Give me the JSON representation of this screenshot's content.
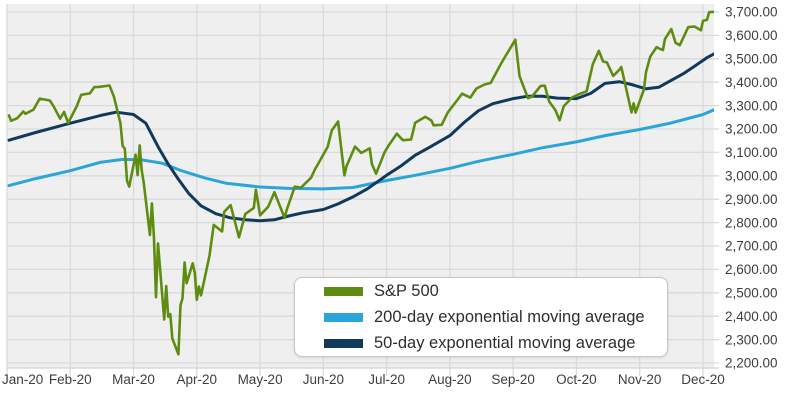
{
  "chart_data": {
    "type": "line",
    "title": "",
    "grid": true,
    "legend_position": "boxed-bottom-center",
    "x_axis": {
      "labels": [
        "Jan-20",
        "Feb-20",
        "Mar-20",
        "Apr-20",
        "May-20",
        "Jun-20",
        "Jul-20",
        "Aug-20",
        "Sep-20",
        "Oct-20",
        "Nov-20",
        "Dec-20"
      ]
    },
    "y_axis": {
      "min": 2200,
      "max": 3700,
      "step": 100,
      "labels": [
        "2,200.00",
        "2,300.00",
        "2,400.00",
        "2,500.00",
        "2,600.00",
        "2,700.00",
        "2,800.00",
        "2,900.00",
        "3,000.00",
        "3,100.00",
        "3,200.00",
        "3,300.00",
        "3,400.00",
        "3,500.00",
        "3,600.00",
        "3,700.00"
      ]
    },
    "point_format": "[month, day, close] for year 2020",
    "series": [
      {
        "name": "S&P 500",
        "color": "#5e8c11",
        "width": 2.6,
        "points": [
          [
            1,
            2,
            3258
          ],
          [
            1,
            3,
            3235
          ],
          [
            1,
            6,
            3246
          ],
          [
            1,
            9,
            3275
          ],
          [
            1,
            10,
            3265
          ],
          [
            1,
            14,
            3283
          ],
          [
            1,
            17,
            3330
          ],
          [
            1,
            22,
            3322
          ],
          [
            1,
            24,
            3295
          ],
          [
            1,
            27,
            3244
          ],
          [
            1,
            29,
            3273
          ],
          [
            1,
            31,
            3226
          ],
          [
            2,
            4,
            3298
          ],
          [
            2,
            6,
            3346
          ],
          [
            2,
            10,
            3352
          ],
          [
            2,
            12,
            3379
          ],
          [
            2,
            14,
            3380
          ],
          [
            2,
            19,
            3386
          ],
          [
            2,
            21,
            3338
          ],
          [
            2,
            24,
            3226
          ],
          [
            2,
            25,
            3128
          ],
          [
            2,
            26,
            3116
          ],
          [
            2,
            27,
            2979
          ],
          [
            2,
            28,
            2954
          ],
          [
            3,
            2,
            3090
          ],
          [
            3,
            3,
            3003
          ],
          [
            3,
            4,
            3130
          ],
          [
            3,
            5,
            3024
          ],
          [
            3,
            6,
            2972
          ],
          [
            3,
            9,
            2747
          ],
          [
            3,
            10,
            2882
          ],
          [
            3,
            11,
            2741
          ],
          [
            3,
            12,
            2481
          ],
          [
            3,
            13,
            2711
          ],
          [
            3,
            16,
            2386
          ],
          [
            3,
            17,
            2529
          ],
          [
            3,
            18,
            2398
          ],
          [
            3,
            19,
            2409
          ],
          [
            3,
            20,
            2305
          ],
          [
            3,
            23,
            2237
          ],
          [
            3,
            24,
            2447
          ],
          [
            3,
            25,
            2476
          ],
          [
            3,
            26,
            2630
          ],
          [
            3,
            27,
            2541
          ],
          [
            3,
            30,
            2626
          ],
          [
            3,
            31,
            2585
          ],
          [
            4,
            1,
            2470
          ],
          [
            4,
            2,
            2527
          ],
          [
            4,
            3,
            2489
          ],
          [
            4,
            7,
            2659
          ],
          [
            4,
            9,
            2790
          ],
          [
            4,
            13,
            2762
          ],
          [
            4,
            14,
            2846
          ],
          [
            4,
            17,
            2875
          ],
          [
            4,
            21,
            2737
          ],
          [
            4,
            24,
            2837
          ],
          [
            4,
            28,
            2863
          ],
          [
            4,
            29,
            2940
          ],
          [
            5,
            1,
            2831
          ],
          [
            5,
            5,
            2868
          ],
          [
            5,
            8,
            2930
          ],
          [
            5,
            13,
            2820
          ],
          [
            5,
            14,
            2853
          ],
          [
            5,
            18,
            2954
          ],
          [
            5,
            21,
            2949
          ],
          [
            5,
            26,
            2992
          ],
          [
            5,
            28,
            3030
          ],
          [
            5,
            29,
            3044
          ],
          [
            6,
            3,
            3123
          ],
          [
            6,
            5,
            3194
          ],
          [
            6,
            8,
            3232
          ],
          [
            6,
            11,
            3002
          ],
          [
            6,
            12,
            3041
          ],
          [
            6,
            16,
            3125
          ],
          [
            6,
            19,
            3098
          ],
          [
            6,
            23,
            3117
          ],
          [
            6,
            24,
            3050
          ],
          [
            6,
            26,
            3009
          ],
          [
            6,
            30,
            3100
          ],
          [
            7,
            2,
            3130
          ],
          [
            7,
            6,
            3180
          ],
          [
            7,
            9,
            3152
          ],
          [
            7,
            13,
            3155
          ],
          [
            7,
            15,
            3227
          ],
          [
            7,
            20,
            3252
          ],
          [
            7,
            23,
            3236
          ],
          [
            7,
            24,
            3216
          ],
          [
            7,
            28,
            3218
          ],
          [
            7,
            31,
            3271
          ],
          [
            8,
            5,
            3328
          ],
          [
            8,
            7,
            3351
          ],
          [
            8,
            11,
            3334
          ],
          [
            8,
            14,
            3373
          ],
          [
            8,
            18,
            3390
          ],
          [
            8,
            21,
            3397
          ],
          [
            8,
            26,
            3478
          ],
          [
            8,
            28,
            3508
          ],
          [
            9,
            2,
            3581
          ],
          [
            9,
            4,
            3427
          ],
          [
            9,
            8,
            3332
          ],
          [
            9,
            10,
            3339
          ],
          [
            9,
            14,
            3384
          ],
          [
            9,
            16,
            3385
          ],
          [
            9,
            18,
            3319
          ],
          [
            9,
            21,
            3281
          ],
          [
            9,
            23,
            3237
          ],
          [
            9,
            25,
            3298
          ],
          [
            9,
            29,
            3335
          ],
          [
            10,
            2,
            3348
          ],
          [
            10,
            6,
            3361
          ],
          [
            10,
            9,
            3477
          ],
          [
            10,
            12,
            3534
          ],
          [
            10,
            14,
            3489
          ],
          [
            10,
            16,
            3484
          ],
          [
            10,
            19,
            3427
          ],
          [
            10,
            22,
            3453
          ],
          [
            10,
            23,
            3465
          ],
          [
            10,
            28,
            3271
          ],
          [
            10,
            29,
            3310
          ],
          [
            10,
            30,
            3270
          ],
          [
            11,
            3,
            3369
          ],
          [
            11,
            4,
            3443
          ],
          [
            11,
            6,
            3509
          ],
          [
            11,
            9,
            3550
          ],
          [
            11,
            10,
            3545
          ],
          [
            11,
            12,
            3537
          ],
          [
            11,
            13,
            3585
          ],
          [
            11,
            16,
            3627
          ],
          [
            11,
            18,
            3568
          ],
          [
            11,
            20,
            3558
          ],
          [
            11,
            24,
            3635
          ],
          [
            11,
            27,
            3638
          ],
          [
            11,
            30,
            3622
          ],
          [
            12,
            1,
            3662
          ],
          [
            12,
            3,
            3667
          ],
          [
            12,
            4,
            3699
          ],
          [
            12,
            8,
            3702
          ]
        ]
      },
      {
        "name": "200-day exponential moving average",
        "color": "#2aa5da",
        "width": 3,
        "points": [
          [
            1,
            2,
            2958
          ],
          [
            1,
            15,
            2988
          ],
          [
            2,
            1,
            3022
          ],
          [
            2,
            15,
            3058
          ],
          [
            2,
            25,
            3070
          ],
          [
            3,
            5,
            3068
          ],
          [
            3,
            15,
            3054
          ],
          [
            3,
            25,
            3020
          ],
          [
            4,
            5,
            2990
          ],
          [
            4,
            15,
            2968
          ],
          [
            5,
            1,
            2952
          ],
          [
            5,
            15,
            2946
          ],
          [
            6,
            1,
            2944
          ],
          [
            6,
            15,
            2950
          ],
          [
            7,
            1,
            2980
          ],
          [
            7,
            15,
            3002
          ],
          [
            8,
            1,
            3032
          ],
          [
            8,
            15,
            3062
          ],
          [
            9,
            1,
            3092
          ],
          [
            9,
            15,
            3120
          ],
          [
            10,
            1,
            3145
          ],
          [
            10,
            15,
            3172
          ],
          [
            11,
            1,
            3198
          ],
          [
            11,
            15,
            3224
          ],
          [
            12,
            1,
            3262
          ],
          [
            12,
            8,
            3288
          ]
        ]
      },
      {
        "name": "50-day exponential moving average",
        "color": "#11395c",
        "width": 3,
        "points": [
          [
            1,
            2,
            3152
          ],
          [
            1,
            15,
            3185
          ],
          [
            2,
            1,
            3225
          ],
          [
            2,
            15,
            3258
          ],
          [
            2,
            22,
            3272
          ],
          [
            3,
            1,
            3262
          ],
          [
            3,
            7,
            3225
          ],
          [
            3,
            13,
            3125
          ],
          [
            3,
            18,
            3050
          ],
          [
            3,
            23,
            2985
          ],
          [
            3,
            28,
            2925
          ],
          [
            4,
            3,
            2872
          ],
          [
            4,
            10,
            2838
          ],
          [
            4,
            17,
            2820
          ],
          [
            4,
            24,
            2812
          ],
          [
            5,
            1,
            2808
          ],
          [
            5,
            8,
            2812
          ],
          [
            5,
            15,
            2828
          ],
          [
            5,
            22,
            2842
          ],
          [
            6,
            1,
            2856
          ],
          [
            6,
            8,
            2880
          ],
          [
            6,
            15,
            2910
          ],
          [
            6,
            22,
            2945
          ],
          [
            7,
            1,
            3002
          ],
          [
            7,
            8,
            3042
          ],
          [
            7,
            15,
            3088
          ],
          [
            7,
            22,
            3122
          ],
          [
            8,
            1,
            3172
          ],
          [
            8,
            8,
            3228
          ],
          [
            8,
            15,
            3278
          ],
          [
            8,
            22,
            3308
          ],
          [
            9,
            1,
            3330
          ],
          [
            9,
            8,
            3340
          ],
          [
            9,
            15,
            3340
          ],
          [
            9,
            22,
            3332
          ],
          [
            10,
            1,
            3330
          ],
          [
            10,
            8,
            3352
          ],
          [
            10,
            15,
            3395
          ],
          [
            10,
            22,
            3402
          ],
          [
            10,
            28,
            3390
          ],
          [
            11,
            4,
            3372
          ],
          [
            11,
            10,
            3378
          ],
          [
            11,
            16,
            3408
          ],
          [
            11,
            22,
            3438
          ],
          [
            11,
            27,
            3468
          ],
          [
            12,
            3,
            3505
          ],
          [
            12,
            8,
            3528
          ]
        ]
      }
    ]
  },
  "colors": {
    "page_bg": "#ffffff",
    "plot_bg": "#efeff0",
    "grid": "#dadadb",
    "axis_line": "#d2d2d3",
    "axis_text": "#3e3e40",
    "legend_bg": "#ffffff",
    "legend_border": "#c6c6c6",
    "legend_text": "#2e2e30"
  }
}
